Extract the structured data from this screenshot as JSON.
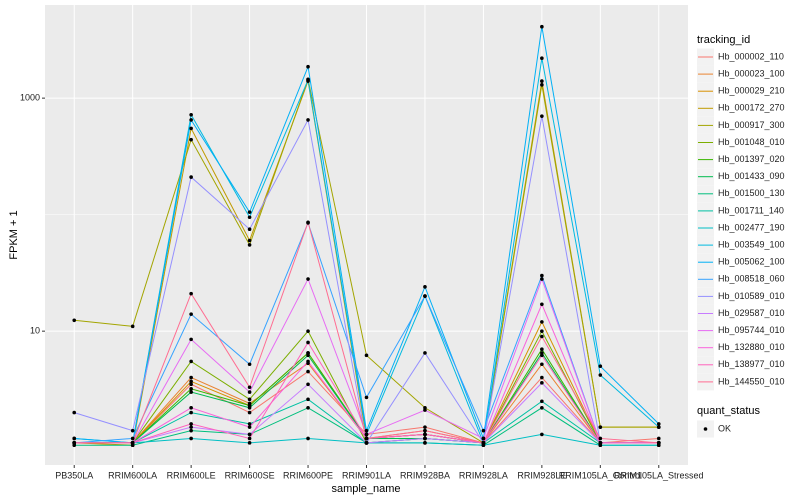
{
  "chart_data": {
    "type": "line",
    "x_label": "sample_name",
    "y_label": "FPKM + 1",
    "categories": [
      "PB350LA",
      "RRIM600LA",
      "RRIM600LE",
      "RRIM600SE",
      "RRIM600PE",
      "RRIM901LA",
      "RRIM928BA",
      "RRIM928LA",
      "RRIM928LE",
      "RRIM105LA_Control",
      "RRIM105LA_Stressed"
    ],
    "log_scale": true,
    "grid": true,
    "ylim": [
      0.71,
      6300
    ],
    "yticks": [
      10,
      1000
    ],
    "legend_title": "tracking_id",
    "point_legend": {
      "title": "quant_status",
      "labels": [
        "OK"
      ],
      "color": "#000000"
    },
    "series": [
      {
        "name": "Hb_000002_110",
        "color": "#F8766D",
        "values": [
          1.1,
          1.1,
          3.5,
          2,
          4.5,
          1.3,
          1.5,
          1.1,
          4,
          1.1,
          1.2
        ]
      },
      {
        "name": "Hb_000023_100",
        "color": "#EA8331",
        "values": [
          1.1,
          1.1,
          4,
          2.4,
          5.3,
          1.2,
          1.4,
          1.1,
          5.2,
          1.1,
          1.1
        ]
      },
      {
        "name": "Hb_000029_210",
        "color": "#D89000",
        "values": [
          1.1,
          1.1,
          3.7,
          2.3,
          6.5,
          1.2,
          1.3,
          1.1,
          12,
          1.1,
          1.1
        ]
      },
      {
        "name": "Hb_000172_270",
        "color": "#C09B00",
        "values": [
          1.1,
          1.05,
          550,
          60,
          1400,
          1.2,
          1.3,
          1.1,
          1400,
          1.5,
          1.5
        ]
      },
      {
        "name": "Hb_000917_300",
        "color": "#A3A500",
        "values": [
          12.4,
          11,
          440,
          55,
          1450,
          6.2,
          2.2,
          1.1,
          1300,
          1.5,
          1.5
        ]
      },
      {
        "name": "Hb_001048_010",
        "color": "#7CAE00",
        "values": [
          1.1,
          1.1,
          5.5,
          2.6,
          10,
          1.1,
          1.2,
          1.1,
          10,
          1.1,
          1.1
        ]
      },
      {
        "name": "Hb_001397_020",
        "color": "#39B600",
        "values": [
          1.1,
          1.1,
          3.2,
          2.3,
          6.5,
          1.2,
          1.3,
          1.1,
          7,
          1.1,
          1.1
        ]
      },
      {
        "name": "Hb_001433_090",
        "color": "#00BB4E",
        "values": [
          1.1,
          1.1,
          3,
          2.2,
          6.2,
          1.2,
          1.2,
          1.1,
          6.5,
          1.1,
          1.1
        ]
      },
      {
        "name": "Hb_001500_130",
        "color": "#00BF7D",
        "values": [
          1.05,
          1.05,
          1.4,
          1.3,
          2.2,
          1.1,
          1.1,
          1.05,
          2.2,
          1.05,
          1.05
        ]
      },
      {
        "name": "Hb_001711_140",
        "color": "#00C1A3",
        "values": [
          1.1,
          1.1,
          2,
          1.6,
          2.6,
          1.1,
          1.2,
          1.1,
          2.5,
          1.1,
          1.1
        ]
      },
      {
        "name": "Hb_002477_190",
        "color": "#00BFC4",
        "values": [
          1.1,
          1.1,
          1.2,
          1.1,
          1.2,
          1.1,
          1.1,
          1.05,
          1.3,
          1.05,
          1.05
        ]
      },
      {
        "name": "Hb_003549_100",
        "color": "#00BAE0",
        "values": [
          1.2,
          1.1,
          720,
          95,
          1430,
          1.3,
          20,
          1.1,
          2200,
          4.2,
          1.5
        ]
      },
      {
        "name": "Hb_005062_100",
        "color": "#00B0F6",
        "values": [
          1.2,
          1.1,
          650,
          105,
          1860,
          1.4,
          24,
          1.2,
          4100,
          5,
          1.6
        ]
      },
      {
        "name": "Hb_008518_060",
        "color": "#35A2FF",
        "values": [
          1.1,
          1.2,
          14,
          5.2,
          85,
          2.7,
          20,
          1.4,
          30,
          1.1,
          1.1
        ]
      },
      {
        "name": "Hb_010589_010",
        "color": "#9590FF",
        "values": [
          2,
          1.4,
          210,
          75,
          650,
          1.1,
          6.5,
          1.1,
          700,
          1.1,
          1.1
        ]
      },
      {
        "name": "Hb_029587_010",
        "color": "#C77CFF",
        "values": [
          1.1,
          1.1,
          1.5,
          1.3,
          3.5,
          1.1,
          1.2,
          1.1,
          3.6,
          1.1,
          1.1
        ]
      },
      {
        "name": "Hb_095744_010",
        "color": "#E76BF3",
        "values": [
          1.1,
          1.1,
          8.5,
          3,
          28,
          1.3,
          2.1,
          1.2,
          28,
          1.1,
          1.1
        ]
      },
      {
        "name": "Hb_132880_010",
        "color": "#FA62DB",
        "values": [
          1.1,
          1.1,
          2.2,
          1.5,
          5.5,
          1.2,
          1.3,
          1.1,
          17,
          1.1,
          1.1
        ]
      },
      {
        "name": "Hb_138977_010",
        "color": "#FF62BC",
        "values": [
          1.1,
          1.1,
          1.6,
          1.2,
          8,
          1.2,
          1.3,
          1.1,
          6.2,
          1.1,
          1.1
        ]
      },
      {
        "name": "Hb_144550_010",
        "color": "#FF6C91",
        "values": [
          1.1,
          1.1,
          21,
          3.3,
          86,
          1.2,
          1.4,
          1.1,
          9,
          1.2,
          1.1
        ]
      }
    ]
  }
}
